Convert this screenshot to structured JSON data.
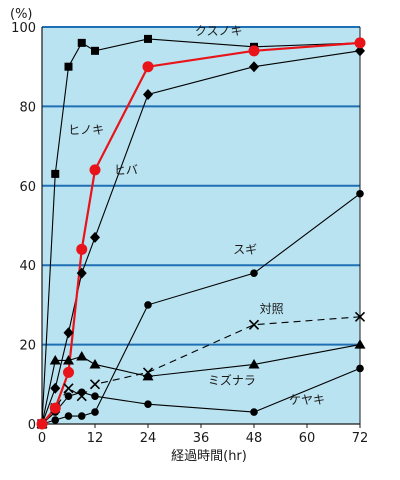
{
  "chart_data": {
    "type": "line",
    "y_unit": "(%)",
    "xlabel": "経過時間(hr)",
    "ylabel": "",
    "xlim": [
      0,
      72
    ],
    "ylim": [
      0,
      100
    ],
    "xticks": [
      0,
      12,
      24,
      36,
      48,
      60,
      72
    ],
    "yticks": [
      0,
      20,
      40,
      60,
      80,
      100
    ],
    "grid": "horizontal",
    "plot_background": "#b9e3f1",
    "grid_color": "#1f6fb4",
    "series": [
      {
        "name": "クスノキ",
        "marker": "square",
        "color": "#000000",
        "dash": false,
        "points": [
          [
            0,
            0
          ],
          [
            3,
            63
          ],
          [
            6,
            90
          ],
          [
            9,
            96
          ],
          [
            12,
            94
          ],
          [
            24,
            97
          ],
          [
            48,
            95
          ],
          [
            72,
            96
          ]
        ]
      },
      {
        "name": "ヒノキ",
        "marker": "circle",
        "color": "#e8141a",
        "dash": false,
        "points": [
          [
            0,
            0
          ],
          [
            3,
            4
          ],
          [
            6,
            13
          ],
          [
            9,
            44
          ],
          [
            12,
            64
          ],
          [
            24,
            90
          ],
          [
            48,
            94
          ],
          [
            72,
            96
          ]
        ]
      },
      {
        "name": "ヒバ",
        "marker": "diamond",
        "color": "#000000",
        "dash": false,
        "points": [
          [
            0,
            0
          ],
          [
            3,
            9
          ],
          [
            6,
            23
          ],
          [
            9,
            38
          ],
          [
            12,
            47
          ],
          [
            24,
            83
          ],
          [
            48,
            90
          ],
          [
            72,
            94
          ]
        ]
      },
      {
        "name": "スギ",
        "marker": "circle",
        "color": "#000000",
        "dash": false,
        "points": [
          [
            0,
            0
          ],
          [
            3,
            1
          ],
          [
            6,
            2
          ],
          [
            9,
            2
          ],
          [
            12,
            3
          ],
          [
            24,
            30
          ],
          [
            48,
            38
          ],
          [
            72,
            58
          ]
        ]
      },
      {
        "name": "対照",
        "marker": "cross",
        "color": "#000000",
        "dash": true,
        "points": [
          [
            0,
            0
          ],
          [
            3,
            4
          ],
          [
            6,
            9
          ],
          [
            9,
            7
          ],
          [
            12,
            10
          ],
          [
            24,
            13
          ],
          [
            48,
            25
          ],
          [
            72,
            27
          ]
        ]
      },
      {
        "name": "ミズナラ",
        "marker": "triangle",
        "color": "#000000",
        "dash": false,
        "points": [
          [
            0,
            0
          ],
          [
            3,
            16
          ],
          [
            6,
            16
          ],
          [
            9,
            17
          ],
          [
            12,
            15
          ],
          [
            24,
            12
          ],
          [
            48,
            15
          ],
          [
            72,
            20
          ]
        ]
      },
      {
        "name": "ケヤキ",
        "marker": "circle",
        "color": "#000000",
        "dash": false,
        "points": [
          [
            0,
            0
          ],
          [
            3,
            3
          ],
          [
            6,
            7
          ],
          [
            9,
            8
          ],
          [
            12,
            7
          ],
          [
            24,
            5
          ],
          [
            48,
            3
          ],
          [
            72,
            14
          ]
        ]
      }
    ],
    "series_labels": [
      {
        "series": "クスノキ",
        "text": "クスノキ",
        "at": [
          40,
          98
        ],
        "color": "#000000"
      },
      {
        "series": "ヒノキ",
        "text": "ヒノキ",
        "at": [
          10,
          73
        ],
        "color": "#e8141a"
      },
      {
        "series": "ヒバ",
        "text": "ヒバ",
        "at": [
          19,
          63
        ],
        "color": "#000000"
      },
      {
        "series": "スギ",
        "text": "スギ",
        "at": [
          46,
          43
        ],
        "color": "#000000"
      },
      {
        "series": "対照",
        "text": "対照",
        "at": [
          52,
          28
        ],
        "color": "#000000"
      },
      {
        "series": "ミズナラ",
        "text": "ミズナラ",
        "at": [
          43,
          10
        ],
        "color": "#000000"
      },
      {
        "series": "ケヤキ",
        "text": "ケヤキ",
        "at": [
          60,
          5
        ],
        "color": "#000000"
      }
    ]
  }
}
